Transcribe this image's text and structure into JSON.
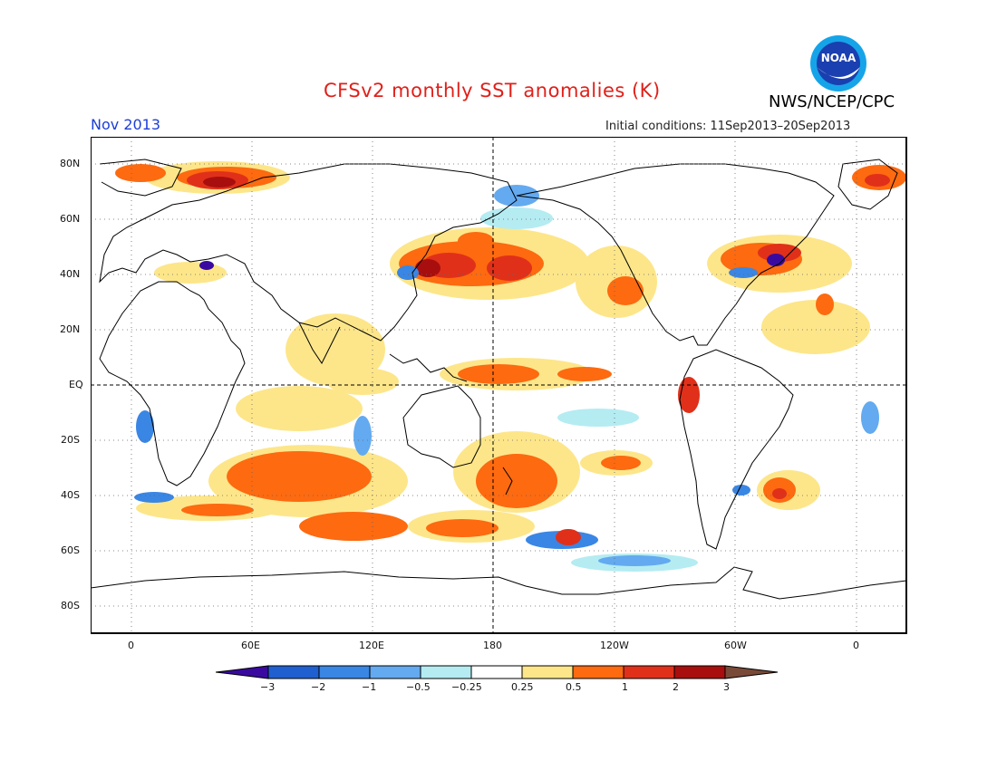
{
  "header": {
    "title": "CFSv2 monthly SST anomalies (K)",
    "valid_month": "Nov 2013",
    "initial_conditions": "Initial conditions: 11Sep2013–20Sep2013",
    "agency": "NWS/NCEP/CPC",
    "logo_text": "NOAA"
  },
  "map": {
    "projection": "equirectangular",
    "lat_ticks": [
      "80N",
      "60N",
      "40N",
      "20N",
      "EQ",
      "20S",
      "40S",
      "60S",
      "80S"
    ],
    "lon_ticks": [
      "0",
      "60E",
      "120E",
      "180",
      "120W",
      "60W",
      "0"
    ],
    "lat_range": [
      -90,
      90
    ],
    "lon_range": [
      -20,
      380
    ],
    "grid": "dotted",
    "center_lines": "dashed equator and 180"
  },
  "colorbar": {
    "labels": [
      "−3",
      "−2",
      "−1",
      "−0.5",
      "−0.25",
      "0.25",
      "0.5",
      "1",
      "2",
      "3"
    ],
    "colors": [
      "#3a0aa0",
      "#1f5fd0",
      "#3a86e4",
      "#63aaf0",
      "#b4ecf2",
      "#ffffff",
      "#fde68a",
      "#fd6a10",
      "#e0301a",
      "#a80e0e",
      "#7a4a38"
    ]
  }
}
